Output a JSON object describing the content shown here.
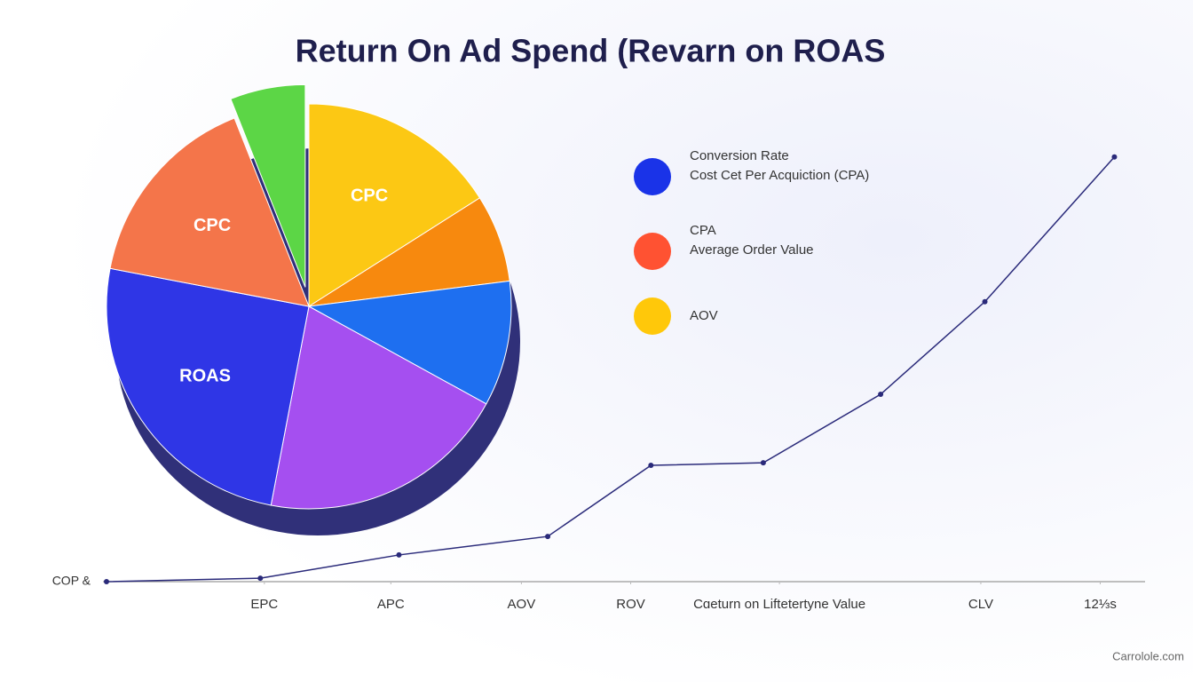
{
  "title": "Return  On Ad Spend (Revarn on ROAS",
  "source": "Carrolole.com",
  "chart_data": [
    {
      "type": "pie",
      "categories": [
        "CPC",
        null,
        null,
        null,
        "ROAS",
        "CPC",
        null
      ],
      "values": [
        16,
        7,
        10,
        20,
        25,
        16,
        6
      ],
      "colors": [
        "#fcc814",
        "#f7890e",
        "#1e6ff0",
        "#a54ff0",
        "#2f36e6",
        "#f4754a",
        "#5cd646"
      ],
      "exploded": [
        false,
        false,
        false,
        false,
        false,
        false,
        true
      ],
      "legend": [
        {
          "color": "#1a33e8",
          "labels": [
            "Conversion Rate",
            "Cost Cet Per Acquiction (CPA)"
          ]
        },
        {
          "color": "#ff5232",
          "labels": [
            "CPA",
            "Average Order Value"
          ]
        },
        {
          "color": "#ffc80a",
          "labels": [
            "AOV"
          ]
        }
      ]
    },
    {
      "type": "line",
      "x": [
        0,
        15.2,
        28.9,
        43.6,
        53.8,
        64.9,
        76.5,
        86.8,
        99.6
      ],
      "values": [
        0,
        0.8,
        6.2,
        10.5,
        27,
        27.6,
        43.5,
        65,
        98.6
      ],
      "color": "#2a2a7a",
      "xlim": [
        0,
        100
      ],
      "ylim": [
        0,
        100
      ],
      "xticks": [
        {
          "value": 15.6,
          "label": "EPC"
        },
        {
          "value": 28.1,
          "label": "APC"
        },
        {
          "value": 41,
          "label": "AOV"
        },
        {
          "value": 51.8,
          "label": "ROV"
        },
        {
          "value": 66.5,
          "label": "Cɑeturn on Liftetertyne Value"
        },
        {
          "value": 86.4,
          "label": "CLV"
        },
        {
          "value": 98.2,
          "label": "12⅓s"
        }
      ],
      "yticks": [
        {
          "value": 0,
          "label": "COP &"
        }
      ]
    }
  ]
}
